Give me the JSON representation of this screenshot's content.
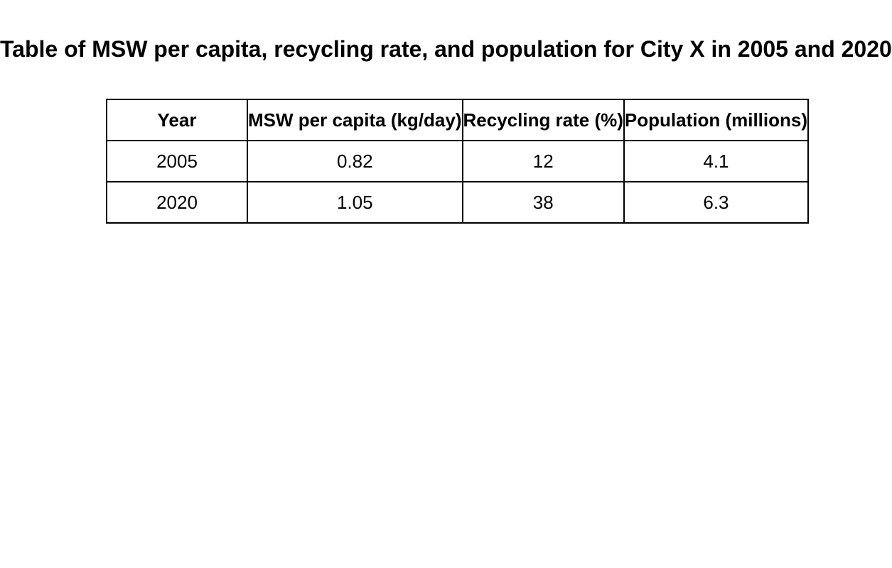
{
  "chart_data": {
    "type": "table",
    "title": "Table of MSW per capita, recycling rate, and population for City X in 2005 and 2020",
    "columns": [
      "Year",
      "MSW per capita (kg/day)",
      "Recycling rate (%)",
      "Population (millions)"
    ],
    "rows": [
      [
        "2005",
        "0.82",
        "12",
        "4.1"
      ],
      [
        "2020",
        "1.05",
        "38",
        "6.3"
      ]
    ]
  }
}
